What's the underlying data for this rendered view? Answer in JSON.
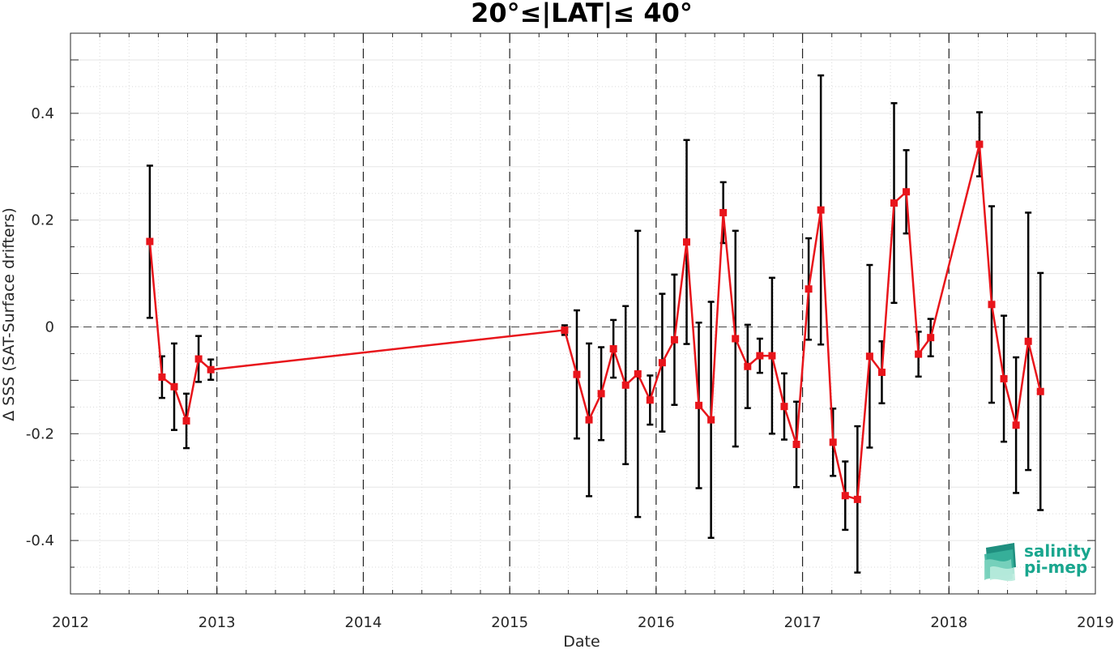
{
  "chart_data": {
    "type": "line",
    "title": "20°≤|LAT|≤ 40°",
    "xlabel": "Date",
    "ylabel": "Δ SSS (SAT-Surface drifters)",
    "xlim": [
      2012,
      2019
    ],
    "ylim": [
      -0.5,
      0.55
    ],
    "x_ticks": [
      "2012",
      "2013",
      "2014",
      "2015",
      "2016",
      "2017",
      "2018",
      "2019"
    ],
    "y_ticks": [
      "-0.4",
      "-0.2",
      "0",
      "0.2",
      "0.4"
    ],
    "grid": true,
    "minor_grid": true,
    "vertical_dashed_lines_at_years": [
      2013,
      2014,
      2015,
      2016,
      2017,
      2018
    ],
    "zero_reference_line": true,
    "series": [
      {
        "color": "#e8151b",
        "errorbar_color": "#000000",
        "marker": "square",
        "points": [
          {
            "x": "2012-07",
            "y": 0.16,
            "lo": 0.017,
            "hi": 0.302
          },
          {
            "x": "2012-08",
            "y": -0.094,
            "lo": -0.133,
            "hi": -0.055
          },
          {
            "x": "2012-09",
            "y": -0.112,
            "lo": -0.193,
            "hi": -0.031
          },
          {
            "x": "2012-10",
            "y": -0.176,
            "lo": -0.227,
            "hi": -0.125
          },
          {
            "x": "2012-11",
            "y": -0.06,
            "lo": -0.103,
            "hi": -0.017
          },
          {
            "x": "2012-12",
            "y": -0.08,
            "lo": -0.099,
            "hi": -0.061
          },
          {
            "x": "2015-05",
            "y": -0.006,
            "lo": -0.015,
            "hi": 0.003
          },
          {
            "x": "2015-06",
            "y": -0.089,
            "lo": -0.209,
            "hi": 0.031
          },
          {
            "x": "2015-07",
            "y": -0.174,
            "lo": -0.317,
            "hi": -0.031
          },
          {
            "x": "2015-08",
            "y": -0.125,
            "lo": -0.212,
            "hi": -0.038
          },
          {
            "x": "2015-09",
            "y": -0.041,
            "lo": -0.095,
            "hi": 0.013
          },
          {
            "x": "2015-10",
            "y": -0.109,
            "lo": -0.257,
            "hi": 0.039
          },
          {
            "x": "2015-11",
            "y": -0.088,
            "lo": -0.356,
            "hi": 0.18
          },
          {
            "x": "2015-12",
            "y": -0.137,
            "lo": -0.183,
            "hi": -0.091
          },
          {
            "x": "2016-01",
            "y": -0.067,
            "lo": -0.196,
            "hi": 0.062
          },
          {
            "x": "2016-02",
            "y": -0.024,
            "lo": -0.146,
            "hi": 0.098
          },
          {
            "x": "2016-03",
            "y": 0.159,
            "lo": -0.032,
            "hi": 0.35
          },
          {
            "x": "2016-04",
            "y": -0.147,
            "lo": -0.302,
            "hi": 0.008
          },
          {
            "x": "2016-05",
            "y": -0.174,
            "lo": -0.395,
            "hi": 0.047
          },
          {
            "x": "2016-06",
            "y": 0.214,
            "lo": 0.157,
            "hi": 0.271
          },
          {
            "x": "2016-07",
            "y": -0.022,
            "lo": -0.224,
            "hi": 0.18
          },
          {
            "x": "2016-08",
            "y": -0.074,
            "lo": -0.152,
            "hi": 0.004
          },
          {
            "x": "2016-09",
            "y": -0.054,
            "lo": -0.086,
            "hi": -0.022
          },
          {
            "x": "2016-10",
            "y": -0.054,
            "lo": -0.2,
            "hi": 0.092
          },
          {
            "x": "2016-11",
            "y": -0.149,
            "lo": -0.211,
            "hi": -0.087
          },
          {
            "x": "2016-12",
            "y": -0.22,
            "lo": -0.3,
            "hi": -0.14
          },
          {
            "x": "2017-01",
            "y": 0.071,
            "lo": -0.024,
            "hi": 0.166
          },
          {
            "x": "2017-02",
            "y": 0.219,
            "lo": -0.033,
            "hi": 0.471
          },
          {
            "x": "2017-03",
            "y": -0.216,
            "lo": -0.279,
            "hi": -0.153
          },
          {
            "x": "2017-04",
            "y": -0.316,
            "lo": -0.38,
            "hi": -0.252
          },
          {
            "x": "2017-05",
            "y": -0.323,
            "lo": -0.46,
            "hi": -0.186
          },
          {
            "x": "2017-06",
            "y": -0.055,
            "lo": -0.226,
            "hi": 0.116
          },
          {
            "x": "2017-07",
            "y": -0.085,
            "lo": -0.143,
            "hi": -0.027
          },
          {
            "x": "2017-08",
            "y": 0.232,
            "lo": 0.045,
            "hi": 0.419
          },
          {
            "x": "2017-09",
            "y": 0.253,
            "lo": 0.175,
            "hi": 0.331
          },
          {
            "x": "2017-10",
            "y": -0.051,
            "lo": -0.093,
            "hi": -0.009
          },
          {
            "x": "2017-11",
            "y": -0.02,
            "lo": -0.055,
            "hi": 0.015
          },
          {
            "x": "2018-03",
            "y": 0.342,
            "lo": 0.282,
            "hi": 0.402
          },
          {
            "x": "2018-04",
            "y": 0.042,
            "lo": -0.142,
            "hi": 0.226
          },
          {
            "x": "2018-05",
            "y": -0.097,
            "lo": -0.215,
            "hi": 0.021
          },
          {
            "x": "2018-06",
            "y": -0.184,
            "lo": -0.311,
            "hi": -0.057
          },
          {
            "x": "2018-07",
            "y": -0.027,
            "lo": -0.268,
            "hi": 0.214
          },
          {
            "x": "2018-08",
            "y": -0.121,
            "lo": -0.343,
            "hi": 0.101
          }
        ]
      }
    ]
  },
  "logo": {
    "line1": "salinity",
    "line2": "pi-mep",
    "icon": "wave-stack-logo-icon",
    "color": "#19a68e"
  }
}
